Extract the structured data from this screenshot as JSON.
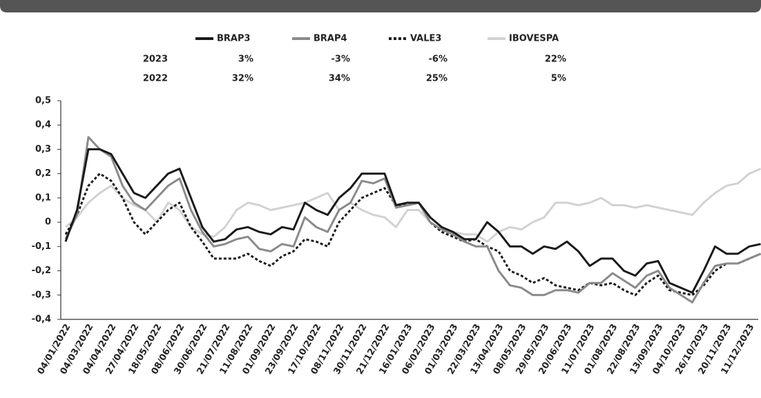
{
  "chart_data": {
    "type": "line",
    "categories": [
      "04/01/2022",
      null,
      "04/03/2022",
      null,
      "04/04/2022",
      null,
      "27/04/2022",
      null,
      "18/05/2022",
      null,
      "08/06/2022",
      null,
      "30/06/2022",
      null,
      "21/07/2022",
      null,
      "11/08/2022",
      null,
      "01/09/2022",
      null,
      "23/09/2022",
      null,
      "17/10/2022",
      null,
      "08/11/2022",
      null,
      "30/11/2022",
      null,
      "21/12/2022",
      null,
      "16/01/2023",
      null,
      "06/02/2023",
      null,
      "01/03/2023",
      null,
      "22/03/2023",
      null,
      "13/04/2023",
      null,
      "08/05/2023",
      null,
      "29/05/2023",
      null,
      "20/06/2023",
      null,
      "11/07/2023",
      null,
      "01/08/2023",
      null,
      "22/08/2023",
      null,
      "13/09/2023",
      null,
      "04/10/2023",
      null,
      "26/10/2023",
      null,
      "20/11/2023",
      null,
      "11/12/2023",
      null
    ],
    "series": [
      {
        "name": "BRAP3",
        "color": "#1a1a1a",
        "style": "solid",
        "values": [
          -0.08,
          0.05,
          0.3,
          0.3,
          0.28,
          0.2,
          0.12,
          0.1,
          0.15,
          0.2,
          0.22,
          0.1,
          -0.02,
          -0.08,
          -0.07,
          -0.03,
          -0.02,
          -0.04,
          -0.05,
          -0.02,
          -0.03,
          0.08,
          0.05,
          0.03,
          0.1,
          0.14,
          0.2,
          0.2,
          0.2,
          0.07,
          0.08,
          0.08,
          0.02,
          -0.02,
          -0.04,
          -0.07,
          -0.07,
          0.0,
          -0.04,
          -0.1,
          -0.1,
          -0.13,
          -0.1,
          -0.11,
          -0.08,
          -0.12,
          -0.18,
          -0.15,
          -0.15,
          -0.2,
          -0.22,
          -0.17,
          -0.16,
          -0.25,
          -0.27,
          -0.29,
          -0.2,
          -0.1,
          -0.13,
          -0.13,
          -0.1,
          -0.09
        ]
      },
      {
        "name": "BRAP4",
        "color": "#8a8a8a",
        "style": "solid",
        "values": [
          -0.07,
          0.03,
          0.35,
          0.3,
          0.27,
          0.15,
          0.08,
          0.05,
          0.1,
          0.15,
          0.18,
          0.05,
          -0.04,
          -0.1,
          -0.09,
          -0.07,
          -0.06,
          -0.11,
          -0.12,
          -0.09,
          -0.1,
          0.02,
          -0.02,
          -0.04,
          0.05,
          0.08,
          0.17,
          0.16,
          0.18,
          0.06,
          0.07,
          0.08,
          0.0,
          -0.03,
          -0.05,
          -0.08,
          -0.1,
          -0.1,
          -0.2,
          -0.26,
          -0.27,
          -0.3,
          -0.3,
          -0.28,
          -0.28,
          -0.29,
          -0.25,
          -0.25,
          -0.21,
          -0.24,
          -0.27,
          -0.22,
          -0.2,
          -0.27,
          -0.3,
          -0.33,
          -0.25,
          -0.18,
          -0.17,
          -0.17,
          -0.15,
          -0.13
        ]
      },
      {
        "name": "VALE3",
        "color": "#1a1a1a",
        "style": "dotted",
        "values": [
          -0.05,
          0.03,
          0.15,
          0.2,
          0.17,
          0.1,
          0.0,
          -0.05,
          0.0,
          0.05,
          0.08,
          -0.02,
          -0.08,
          -0.15,
          -0.15,
          -0.15,
          -0.13,
          -0.16,
          -0.18,
          -0.14,
          -0.12,
          -0.07,
          -0.08,
          -0.1,
          0.0,
          0.05,
          0.1,
          0.12,
          0.14,
          0.07,
          0.07,
          0.08,
          0.0,
          -0.04,
          -0.06,
          -0.08,
          -0.07,
          -0.1,
          -0.12,
          -0.2,
          -0.22,
          -0.25,
          -0.23,
          -0.26,
          -0.27,
          -0.28,
          -0.25,
          -0.26,
          -0.25,
          -0.28,
          -0.3,
          -0.25,
          -0.22,
          -0.28,
          -0.29,
          -0.3,
          -0.26,
          -0.2,
          -0.17,
          -0.17,
          -0.15,
          -0.13
        ]
      },
      {
        "name": "IBOVESPA",
        "color": "#d2d2d2",
        "style": "solid",
        "values": [
          -0.02,
          0.02,
          0.08,
          0.12,
          0.15,
          0.1,
          0.07,
          0.05,
          0.0,
          0.08,
          0.05,
          -0.02,
          -0.05,
          -0.06,
          -0.02,
          0.05,
          0.08,
          0.07,
          0.05,
          0.06,
          0.07,
          0.08,
          0.1,
          0.12,
          0.05,
          0.08,
          0.05,
          0.03,
          0.02,
          -0.02,
          0.05,
          0.05,
          0.0,
          -0.03,
          -0.04,
          -0.05,
          -0.05,
          -0.08,
          -0.04,
          -0.02,
          -0.03,
          0.0,
          0.02,
          0.08,
          0.08,
          0.07,
          0.08,
          0.1,
          0.07,
          0.07,
          0.06,
          0.07,
          0.06,
          0.05,
          0.04,
          0.03,
          0.08,
          0.12,
          0.15,
          0.16,
          0.2,
          0.22
        ]
      }
    ],
    "returns": [
      {
        "year": "2023",
        "values": [
          3,
          -3,
          -6,
          22
        ],
        "value_labels": [
          "3%",
          "-3%",
          "-6%",
          "22%"
        ]
      },
      {
        "year": "2022",
        "values": [
          32,
          34,
          25,
          5
        ],
        "value_labels": [
          "32%",
          "34%",
          "25%",
          "5%"
        ]
      }
    ],
    "ylim": [
      -0.4,
      0.5
    ],
    "yticks": [
      {
        "value": 0.5,
        "label": "0,5"
      },
      {
        "value": 0.4,
        "label": "0,4"
      },
      {
        "value": 0.3,
        "label": "0,3"
      },
      {
        "value": 0.2,
        "label": "0,2"
      },
      {
        "value": 0.1,
        "label": "0,1"
      },
      0,
      {
        "value": -0.1,
        "label": "-0,1"
      },
      {
        "value": -0.2,
        "label": "-0,2"
      },
      {
        "value": -0.3,
        "label": "-0,3"
      },
      {
        "value": -0.4,
        "label": "-0,4"
      }
    ],
    "grid": false,
    "legend": "top"
  }
}
